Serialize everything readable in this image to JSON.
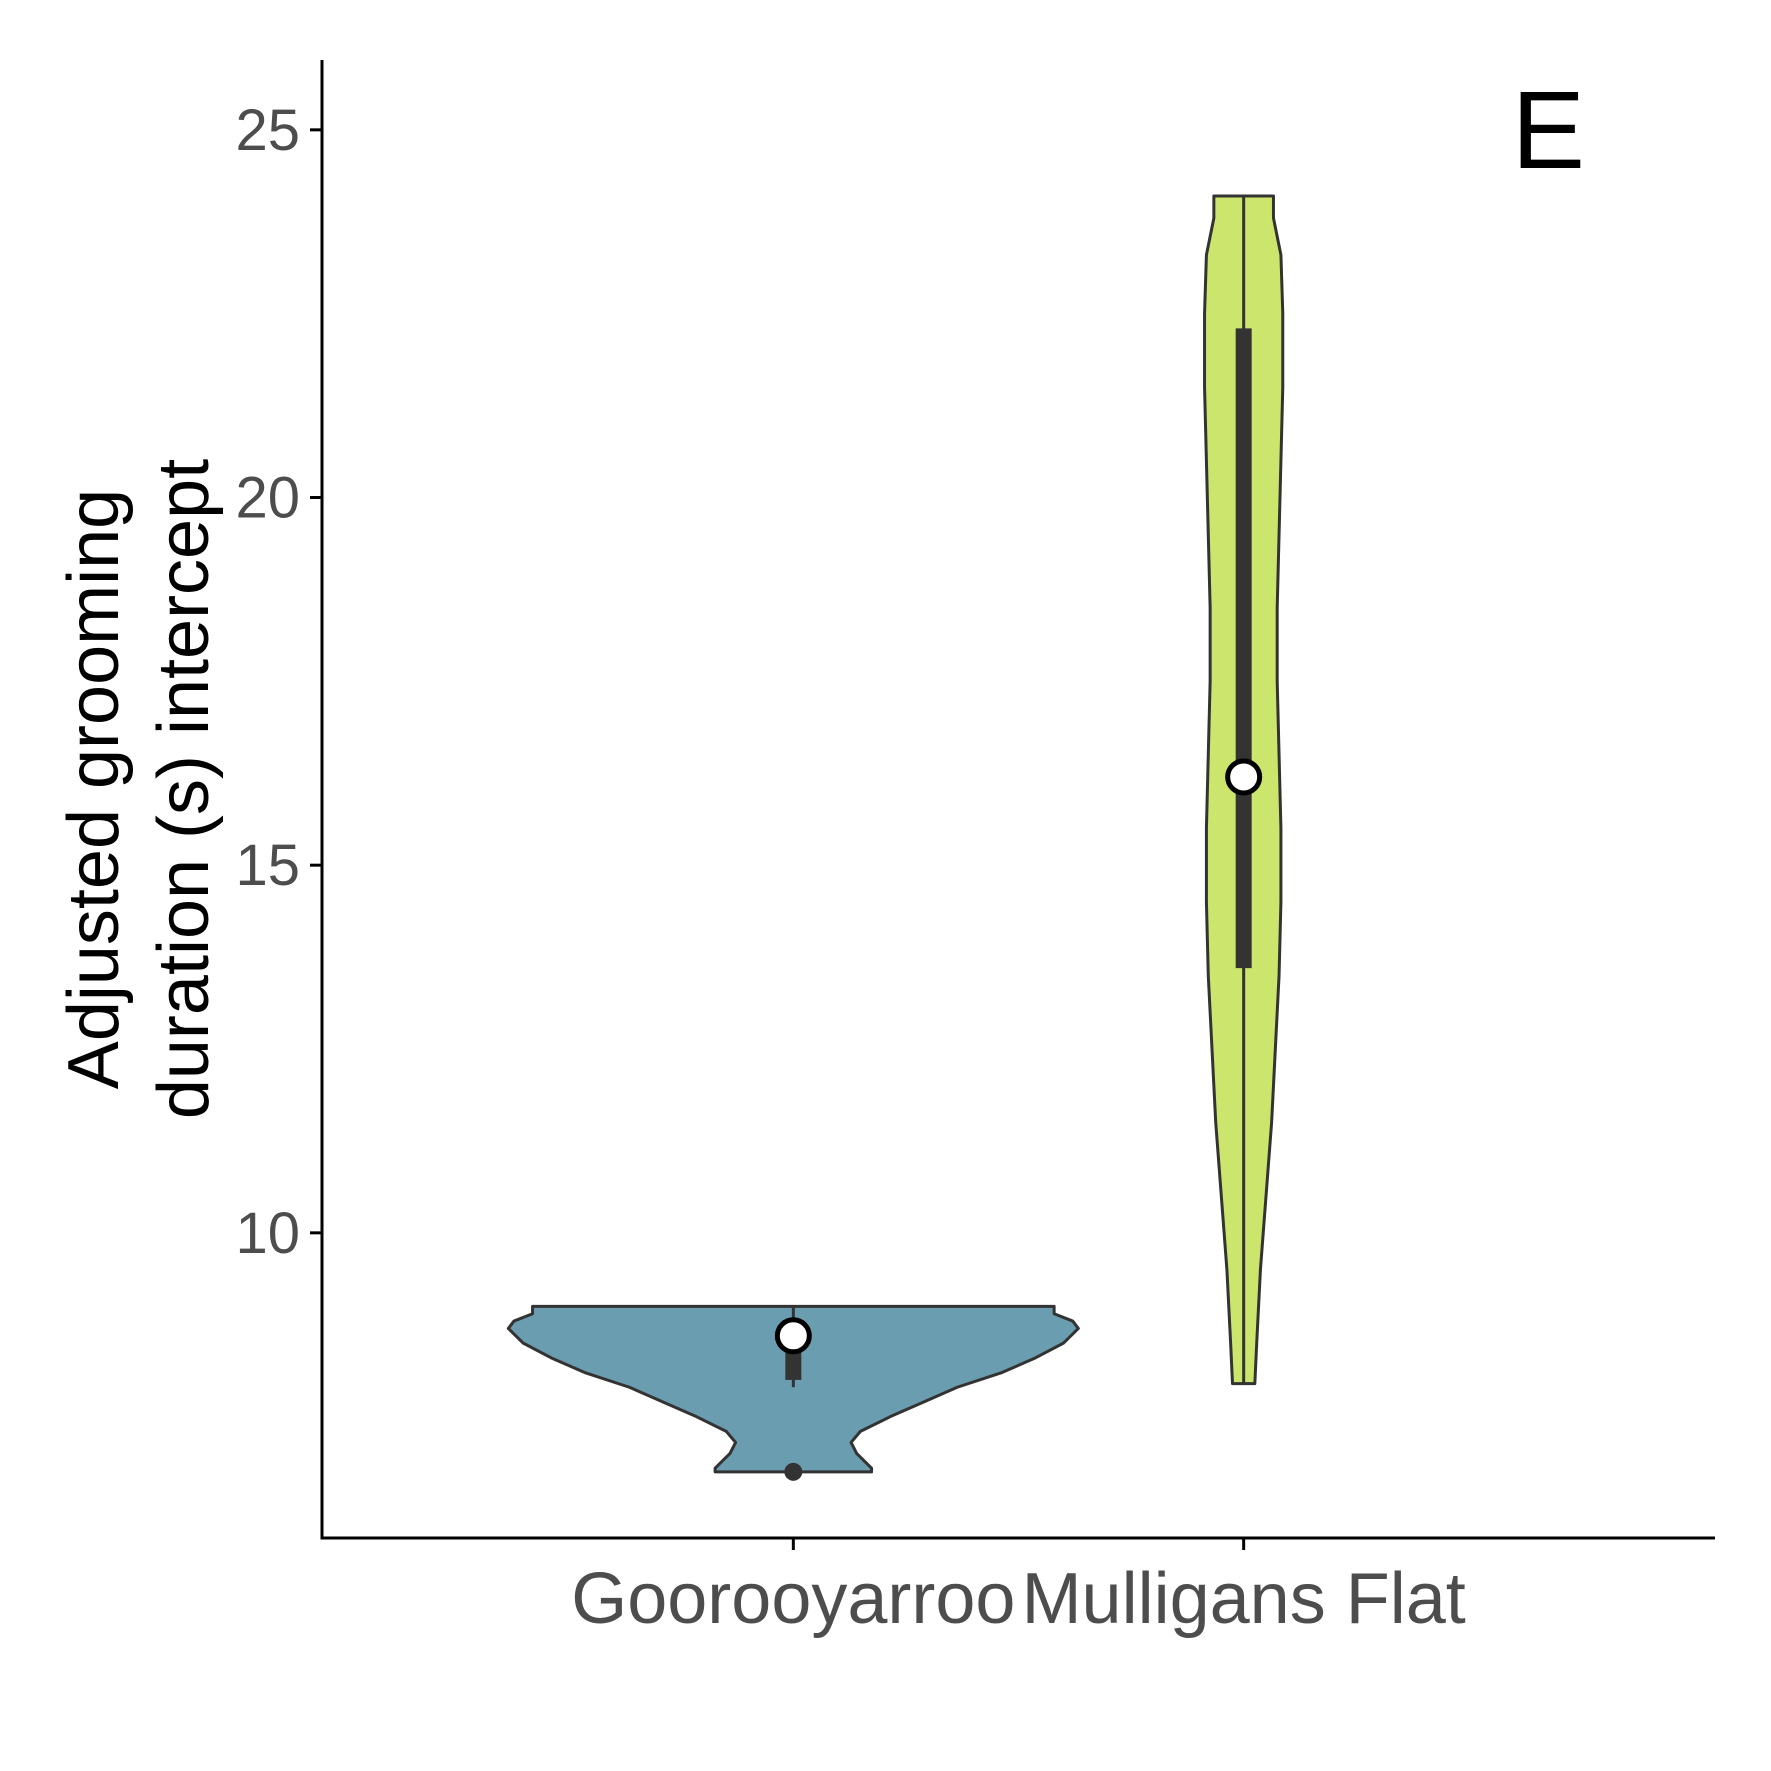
{
  "chart_data": {
    "type": "violin",
    "panel_label": "E",
    "ylabel_lines": [
      "Adjusted grooming",
      "duration (s) intercept"
    ],
    "xlabel": "",
    "ylim": [
      5.85,
      25.95
    ],
    "yticks": [
      10,
      15,
      20,
      25
    ],
    "ytick_labels": [
      "10",
      "15",
      "20",
      "25"
    ],
    "categories": [
      "Goorooyarroo",
      "Mulligans Flat"
    ],
    "grid": false,
    "legend": "none",
    "series": [
      {
        "category": "Goorooyarroo",
        "fill": "#6b9db0",
        "ymin": 6.75,
        "ymax": 9.0,
        "q1": 8.0,
        "median": 8.35,
        "q3": 8.45,
        "whisker_low": 7.9,
        "whisker_high": 9.0,
        "mean": 8.6,
        "outliers": [
          6.75
        ],
        "density": [
          [
            6.75,
            0.42
          ],
          [
            6.8,
            0.42
          ],
          [
            7.0,
            0.34
          ],
          [
            7.15,
            0.31
          ],
          [
            7.3,
            0.36
          ],
          [
            7.5,
            0.52
          ],
          [
            7.7,
            0.7
          ],
          [
            7.9,
            0.88
          ],
          [
            8.1,
            1.12
          ],
          [
            8.3,
            1.3
          ],
          [
            8.5,
            1.45
          ],
          [
            8.7,
            1.53
          ],
          [
            8.8,
            1.5
          ],
          [
            8.9,
            1.4
          ],
          [
            9.0,
            1.4
          ]
        ]
      },
      {
        "category": "Mulligans Flat",
        "fill": "#cce56c",
        "ymin": 7.95,
        "ymax": 24.1,
        "q1": 13.6,
        "median": 16.5,
        "q3": 22.3,
        "whisker_low": 7.95,
        "whisker_high": 24.1,
        "mean": 16.2,
        "outliers": [],
        "density": [
          [
            7.95,
            0.06
          ],
          [
            8.5,
            0.07
          ],
          [
            9.5,
            0.09
          ],
          [
            10.5,
            0.12
          ],
          [
            11.5,
            0.15
          ],
          [
            12.5,
            0.17
          ],
          [
            13.5,
            0.19
          ],
          [
            14.5,
            0.2
          ],
          [
            15.5,
            0.2
          ],
          [
            16.5,
            0.19
          ],
          [
            17.5,
            0.18
          ],
          [
            18.5,
            0.18
          ],
          [
            19.5,
            0.19
          ],
          [
            20.5,
            0.2
          ],
          [
            21.5,
            0.21
          ],
          [
            22.5,
            0.21
          ],
          [
            23.3,
            0.2
          ],
          [
            23.8,
            0.16
          ],
          [
            24.1,
            0.16
          ]
        ]
      }
    ]
  }
}
